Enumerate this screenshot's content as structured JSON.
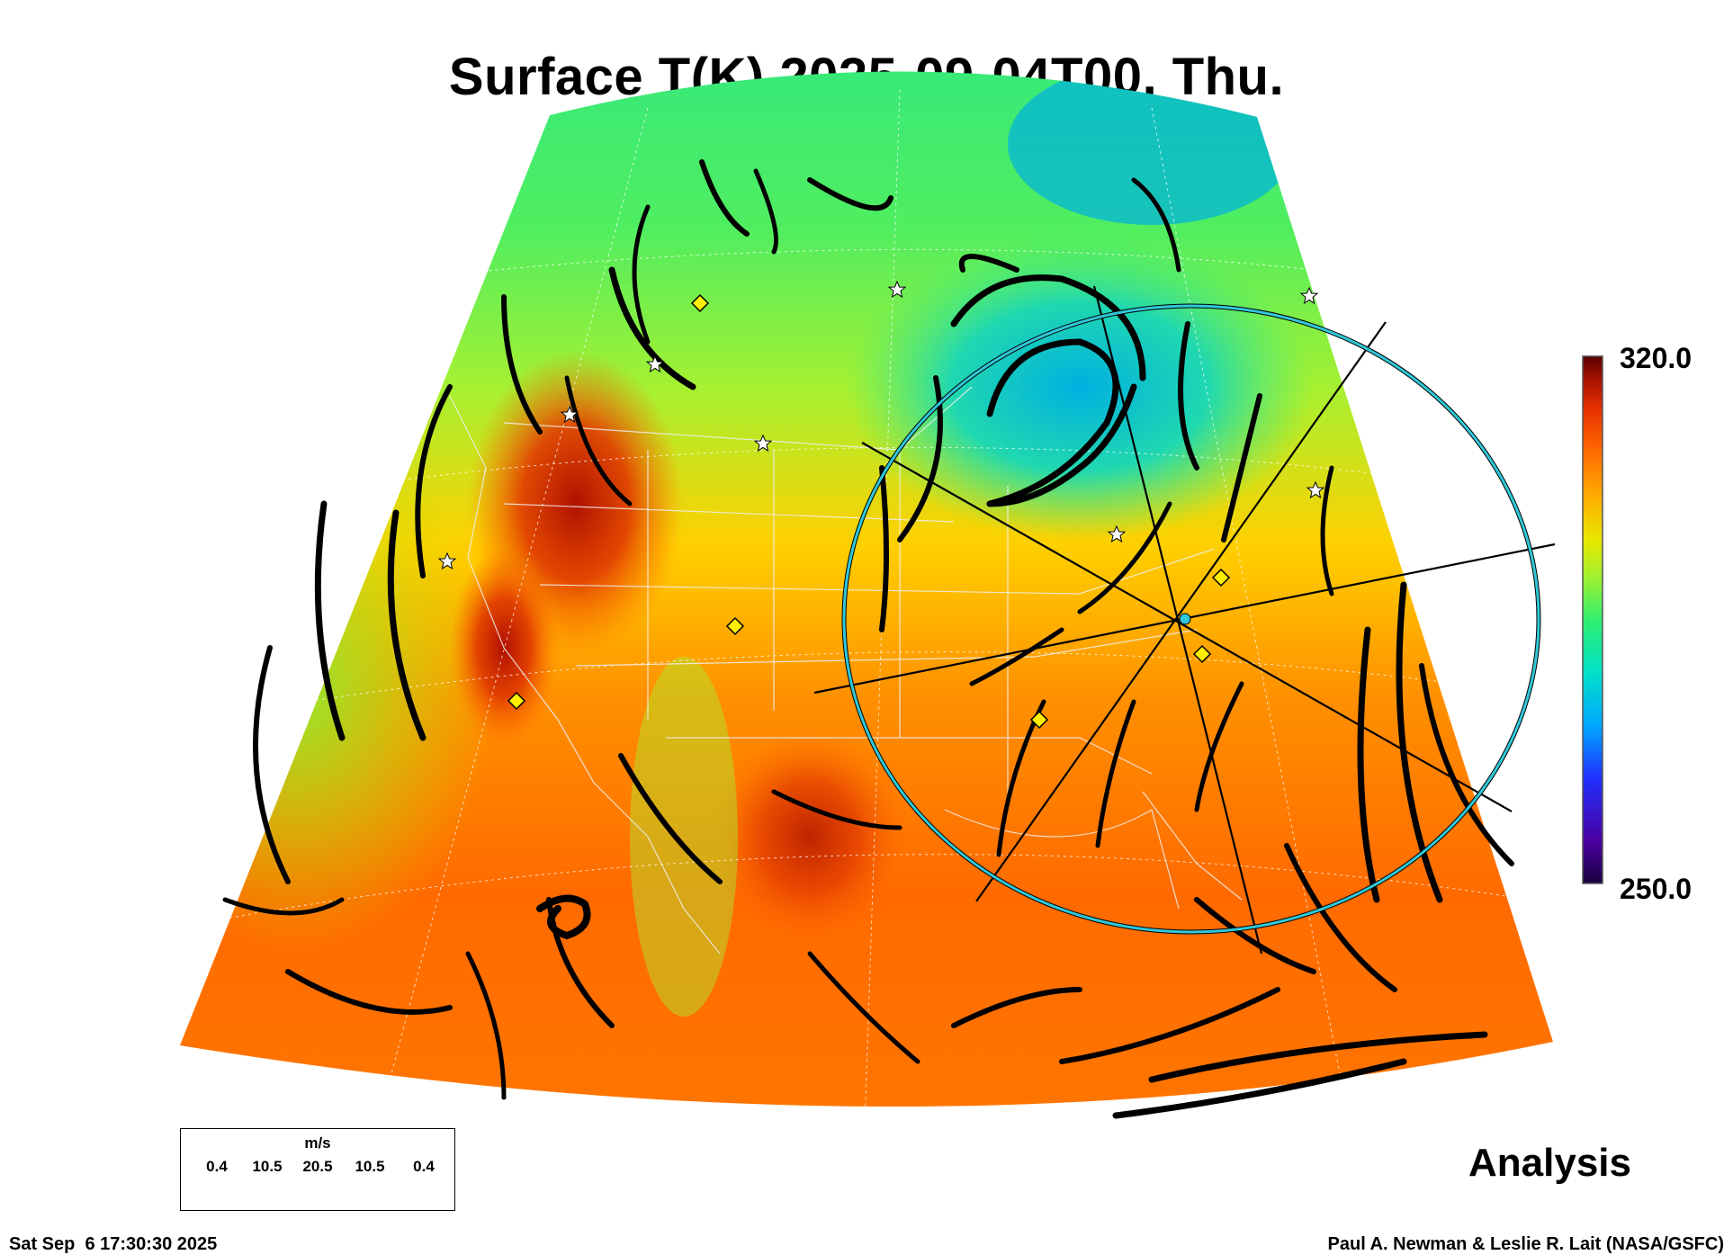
{
  "title": "Surface T(K) 2025-09-04T00, Thu.",
  "colorbar": {
    "max_label": "320.0",
    "min_label": "250.0",
    "colors": [
      "#1a0040",
      "#4b00a0",
      "#2030ff",
      "#00a8ff",
      "#00e0c8",
      "#30f070",
      "#a0f030",
      "#e8e800",
      "#ffb000",
      "#ff6a00",
      "#e83000",
      "#a01000",
      "#5a0000"
    ]
  },
  "legend": {
    "units": "m/s",
    "ticks": [
      "0.4",
      "10.5",
      "20.5",
      "10.5",
      "0.4"
    ]
  },
  "analysis_label": "Analysis",
  "timestamp": "Sat Sep  6 17:30:30 2025",
  "credit": "Paul A. Newman & Leslie R. Lait (NASA/GSFC)",
  "colors": {
    "circle": "#20b8c8",
    "streamline": "#000000",
    "marker_diamond": "#ffee00",
    "marker_star": "#ffffff"
  }
}
